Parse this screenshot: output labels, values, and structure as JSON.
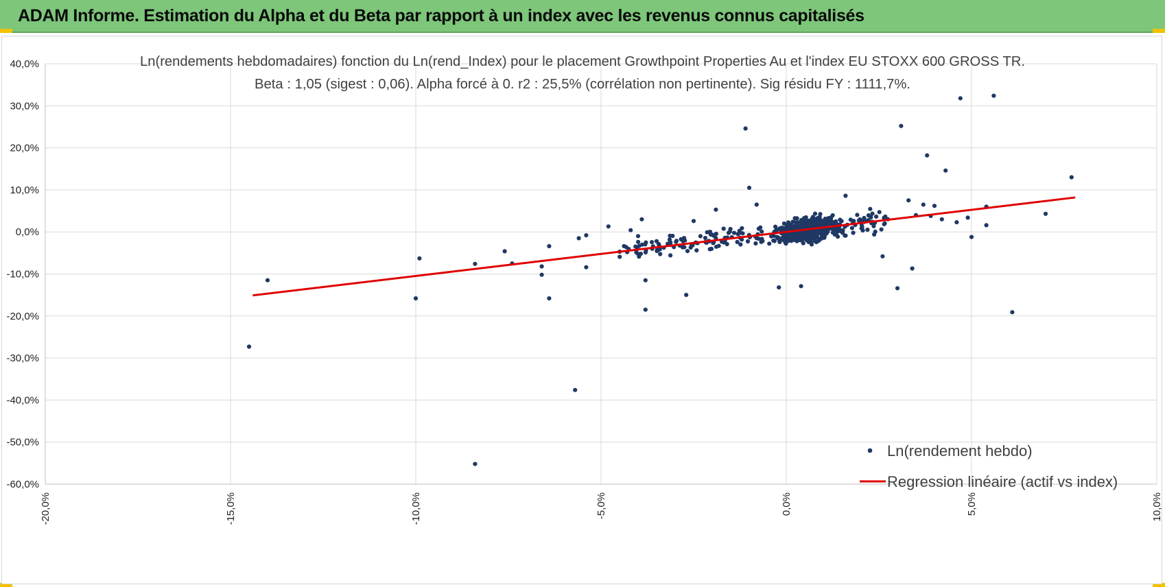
{
  "header": {
    "title": "ADAM Informe. Estimation du Alpha et du Beta par rapport à un index avec les revenus connus capitalisés",
    "background": "#7dc67a",
    "accent": "#f2c200"
  },
  "chart_data": {
    "type": "scatter",
    "title": "Ln(rendements hebdomadaires) fonction du Ln(rend_Index) pour le placement Growthpoint Properties Au et l'index EU STOXX 600 GROSS TR.",
    "subtitle": "Beta : 1,05 (sigest : 0,06).  Alpha forcé à 0. r2 : 25,5% (corrélation non pertinente). Sig résidu FY : 1111,7%.",
    "xlabel": "",
    "ylabel": "",
    "xlim": [
      -20,
      10
    ],
    "ylim": [
      -60,
      40
    ],
    "x_ticks": [
      -20,
      -15,
      -10,
      -5,
      0,
      5,
      10
    ],
    "x_tick_labels": [
      "-20,0%",
      "-15,0%",
      "-10,0%",
      "-5,0%",
      "0,0%",
      "5,0%",
      "10,0%"
    ],
    "y_ticks": [
      40,
      30,
      20,
      10,
      0,
      -10,
      -20,
      -30,
      -40,
      -50,
      -60
    ],
    "y_tick_labels": [
      "40,0%",
      "30,0%",
      "20,0%",
      "10,0%",
      "0,0%",
      "-10,0%",
      "-20,0%",
      "-30,0%",
      "-40,0%",
      "-50,0%",
      "-60,0%"
    ],
    "grid": true,
    "legend_position": "bottom-right",
    "series": [
      {
        "name": "Ln(rendement hebdo)",
        "kind": "points",
        "color": "#1f3864",
        "outliers": [
          [
            -14.5,
            -27.3
          ],
          [
            -14.0,
            -11.5
          ],
          [
            -10.0,
            -15.8
          ],
          [
            -9.9,
            -6.3
          ],
          [
            -8.4,
            -7.6
          ],
          [
            -8.4,
            -55.2
          ],
          [
            -7.6,
            -4.6
          ],
          [
            -7.4,
            -7.5
          ],
          [
            -6.6,
            -8.2
          ],
          [
            -6.6,
            -10.2
          ],
          [
            -6.4,
            -15.8
          ],
          [
            -6.4,
            -3.4
          ],
          [
            -5.7,
            -37.6
          ],
          [
            -5.6,
            -1.5
          ],
          [
            -5.4,
            -8.4
          ],
          [
            -5.4,
            -0.8
          ],
          [
            -4.8,
            1.3
          ],
          [
            -4.2,
            0.4
          ],
          [
            -4.0,
            -1.0
          ],
          [
            -3.9,
            3.0
          ],
          [
            -3.8,
            -11.5
          ],
          [
            -3.8,
            -18.5
          ],
          [
            -3.5,
            -2.2
          ],
          [
            -2.7,
            -15.0
          ],
          [
            -2.5,
            2.6
          ],
          [
            -1.9,
            5.3
          ],
          [
            -1.1,
            24.6
          ],
          [
            -1.0,
            10.5
          ],
          [
            -0.8,
            6.5
          ],
          [
            -0.2,
            -13.2
          ],
          [
            0.4,
            -12.9
          ],
          [
            1.6,
            8.6
          ],
          [
            2.6,
            -5.8
          ],
          [
            3.0,
            -13.4
          ],
          [
            3.1,
            25.2
          ],
          [
            3.3,
            7.5
          ],
          [
            3.4,
            -8.7
          ],
          [
            3.5,
            4.0
          ],
          [
            3.7,
            6.5
          ],
          [
            3.8,
            18.2
          ],
          [
            3.9,
            3.8
          ],
          [
            4.0,
            6.2
          ],
          [
            4.2,
            3.0
          ],
          [
            4.3,
            14.6
          ],
          [
            4.6,
            2.3
          ],
          [
            4.7,
            31.8
          ],
          [
            4.9,
            3.4
          ],
          [
            5.0,
            -1.2
          ],
          [
            5.4,
            1.6
          ],
          [
            5.4,
            6.0
          ],
          [
            5.6,
            32.4
          ],
          [
            6.1,
            -19.1
          ],
          [
            7.0,
            4.3
          ],
          [
            7.7,
            13.0
          ]
        ],
        "cloud": {
          "count": 720,
          "x_range": [
            -4.5,
            2.8
          ],
          "beta": 1.05,
          "residual_spread": 3.2
        }
      },
      {
        "name": "Regression linéaire (actif vs index)",
        "kind": "line",
        "color": "#e00000",
        "points": [
          [
            -14.4,
            -15.1
          ],
          [
            7.8,
            8.2
          ]
        ]
      }
    ]
  }
}
